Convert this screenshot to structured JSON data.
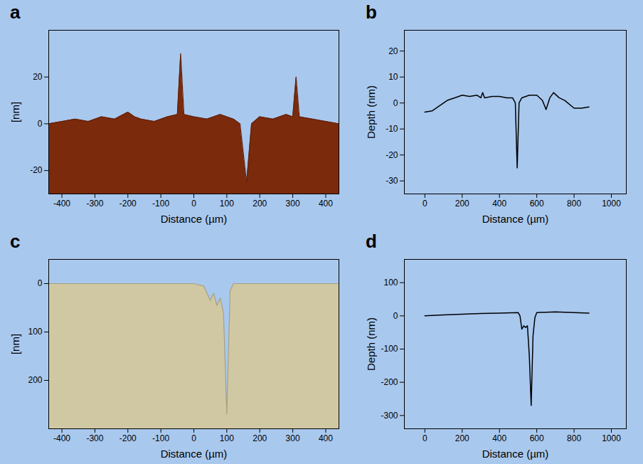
{
  "chart_data": [
    {
      "title": "a",
      "type": "area",
      "color": "#7b2a0c",
      "x_label": "Distance (µm)",
      "y_label": "[nm]",
      "x": [
        -440,
        -400,
        -360,
        -320,
        -280,
        -240,
        -200,
        -180,
        -160,
        -120,
        -80,
        -50,
        -40,
        -30,
        0,
        40,
        80,
        120,
        140,
        160,
        175,
        200,
        240,
        280,
        300,
        310,
        320,
        360,
        400,
        440
      ],
      "values": [
        0,
        1,
        2,
        1,
        3,
        2,
        5,
        3,
        2,
        1,
        3,
        4,
        30,
        4,
        3,
        2,
        4,
        2,
        0,
        -25,
        0,
        3,
        2,
        4,
        3,
        20,
        3,
        2,
        1,
        0
      ],
      "xlim": [
        -440,
        440
      ],
      "ylim": [
        -30,
        40
      ],
      "xticks": [
        -400,
        -300,
        -200,
        -100,
        0,
        100,
        200,
        300,
        400
      ],
      "yticks": [
        -20,
        0,
        20
      ]
    },
    {
      "title": "b",
      "type": "line",
      "color": "#000000",
      "x_label": "Distance (µm)",
      "y_label": "Depth (nm)",
      "x": [
        0,
        40,
        80,
        120,
        160,
        200,
        240,
        280,
        300,
        310,
        320,
        360,
        400,
        440,
        470,
        485,
        495,
        505,
        520,
        560,
        600,
        630,
        650,
        670,
        690,
        720,
        750,
        800,
        840,
        880
      ],
      "values": [
        -3.5,
        -3,
        -1,
        1,
        2,
        3,
        2.5,
        3,
        2,
        4,
        2,
        2.5,
        2.5,
        2,
        2,
        0,
        -25,
        0,
        2,
        3,
        3,
        1,
        -2.5,
        2,
        4,
        2,
        1,
        -2,
        -2,
        -1.5
      ],
      "xlim": [
        -110,
        1080
      ],
      "ylim": [
        -35,
        28
      ],
      "xticks": [
        0,
        200,
        400,
        600,
        800,
        1000
      ],
      "yticks": [
        -30,
        -20,
        -10,
        0,
        10,
        20
      ]
    },
    {
      "title": "c",
      "type": "area",
      "color": "#cfc8a2",
      "x_label": "Distance (µm)",
      "y_label": "[nm]",
      "x": [
        -440,
        -400,
        -300,
        -200,
        -100,
        0,
        30,
        40,
        50,
        60,
        70,
        80,
        90,
        100,
        110,
        120,
        200,
        300,
        400,
        440
      ],
      "values": [
        0,
        0,
        0,
        0,
        0,
        0,
        5,
        20,
        35,
        20,
        45,
        30,
        60,
        270,
        15,
        0,
        0,
        0,
        0,
        0
      ],
      "xlim": [
        -440,
        440
      ],
      "ylim": [
        300,
        -50
      ],
      "xticks": [
        -400,
        -300,
        -200,
        -100,
        0,
        100,
        200,
        300,
        400
      ],
      "yticks": [
        0,
        100,
        200
      ]
    },
    {
      "title": "d",
      "type": "line",
      "color": "#000000",
      "x_label": "Distance (µm)",
      "y_label": "Depth (nm)",
      "x": [
        0,
        100,
        200,
        300,
        400,
        500,
        510,
        520,
        530,
        540,
        550,
        560,
        570,
        580,
        590,
        600,
        700,
        800,
        880
      ],
      "values": [
        0,
        3,
        5,
        7,
        8,
        10,
        0,
        -40,
        -30,
        -35,
        -30,
        -120,
        -270,
        -60,
        -5,
        10,
        12,
        10,
        8
      ],
      "xlim": [
        -110,
        1080
      ],
      "ylim": [
        -340,
        170
      ],
      "xticks": [
        0,
        200,
        400,
        600,
        800,
        1000
      ],
      "yticks": [
        -300,
        -200,
        -100,
        0,
        100
      ]
    }
  ]
}
